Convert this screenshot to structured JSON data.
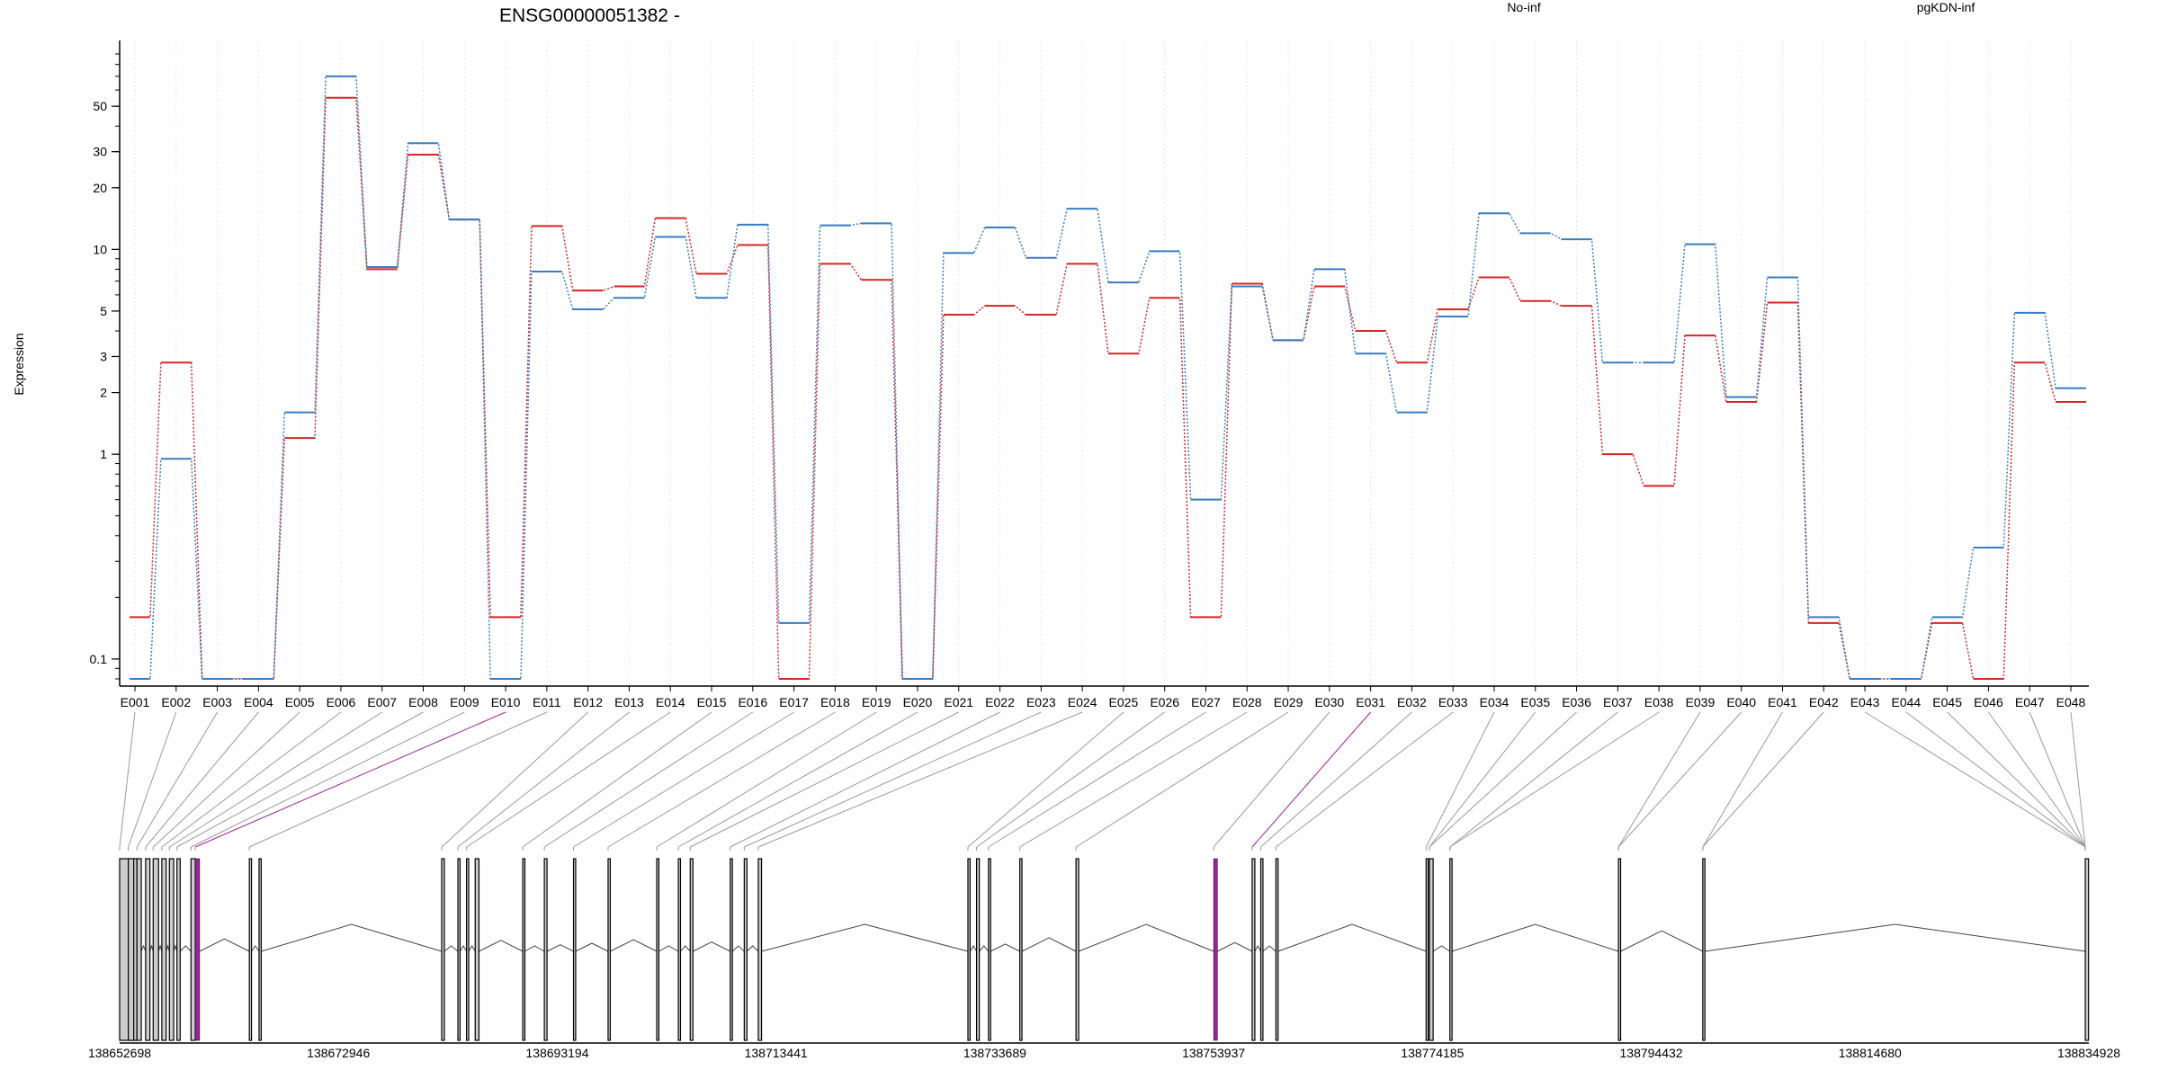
{
  "chart_data": {
    "type": "line",
    "title": "ENSG00000051382 -",
    "xlabel": "",
    "ylabel": "Expression",
    "y_scale": "log",
    "ylim": [
      0.08,
      90
    ],
    "y_ticks": [
      0.1,
      1,
      2,
      3,
      5,
      10,
      20,
      30,
      50
    ],
    "y_tick_labels": [
      "0.1",
      "1",
      "2",
      "3",
      "5",
      "10",
      "20",
      "30",
      "50"
    ],
    "grid": true,
    "legend_placement": "top",
    "categories": [
      "E001",
      "E002",
      "E003",
      "E004",
      "E005",
      "E006",
      "E007",
      "E008",
      "E009",
      "E010",
      "E011",
      "E012",
      "E013",
      "E014",
      "E015",
      "E016",
      "E017",
      "E018",
      "E019",
      "E020",
      "E021",
      "E022",
      "E023",
      "E024",
      "E025",
      "E026",
      "E027",
      "E028",
      "E029",
      "E030",
      "E031",
      "E032",
      "E033",
      "E034",
      "E035",
      "E036",
      "E037",
      "E038",
      "E039",
      "E040",
      "E041",
      "E042",
      "E043",
      "E044",
      "E045",
      "E046",
      "E047",
      "E048"
    ],
    "series": [
      {
        "name": "No-inf",
        "color": "#d62728",
        "values": [
          0.16,
          2.8,
          0.08,
          0.08,
          1.2,
          55,
          8,
          29,
          14,
          0.16,
          13,
          6.3,
          6.6,
          14.2,
          7.6,
          10.5,
          0.08,
          8.5,
          7.1,
          0.08,
          4.8,
          5.3,
          4.8,
          8.5,
          3.1,
          5.8,
          0.16,
          6.8,
          3.6,
          6.6,
          4,
          2.8,
          5.1,
          7.3,
          5.6,
          5.3,
          1,
          0.7,
          3.8,
          1.8,
          5.5,
          0.15,
          0.08,
          0.08,
          0.15,
          0.08,
          2.8,
          1.8
        ]
      },
      {
        "name": "pgKDN-inf",
        "color": "#3a7dc0",
        "values": [
          0.08,
          0.95,
          0.08,
          0.08,
          1.6,
          70,
          8.2,
          33,
          14,
          0.08,
          7.8,
          5.1,
          5.8,
          11.5,
          5.8,
          13.2,
          0.15,
          13.1,
          13.4,
          0.08,
          9.6,
          12.8,
          9.1,
          15.8,
          6.9,
          9.8,
          0.6,
          6.6,
          3.6,
          8,
          3.1,
          1.6,
          4.7,
          15,
          12,
          11.2,
          2.8,
          2.8,
          10.6,
          1.9,
          7.3,
          0.16,
          0.08,
          0.08,
          0.16,
          0.35,
          4.9,
          2.1
        ]
      }
    ],
    "gene_model": {
      "coordinate_labels": [
        "138652698",
        "138672946",
        "138693194",
        "138713441",
        "138733689",
        "138753937",
        "138774185",
        "138794432",
        "138814680",
        "138834928"
      ],
      "coordinate_values": [
        138652698,
        138672946,
        138693194,
        138713441,
        138733689,
        138753937,
        138774185,
        138794432,
        138814680,
        138834928
      ],
      "highlight_color": "#a020a0",
      "exon_color": "#cccccc",
      "highlighted_exons": [
        "E010",
        "E031"
      ],
      "exon_starts": [
        138652698,
        138653500,
        138654300,
        138655100,
        138655800,
        138656600,
        138657300,
        138658000,
        138659300,
        138659700,
        138664700,
        138665600,
        138682500,
        138684000,
        138684800,
        138685600,
        138690000,
        138692000,
        138694700,
        138697900,
        138702400,
        138704400,
        138705500,
        138709200,
        138710500,
        138711800,
        138731200,
        138732000,
        138733100,
        138736000,
        138741200,
        138753937,
        138757500,
        138758300,
        138759700,
        138773600,
        138773900,
        138775800,
        138791400,
        138799200,
        138834600
      ],
      "exon_widths": [
        1600,
        500,
        400,
        400,
        500,
        400,
        400,
        300,
        400,
        400,
        200,
        200,
        250,
        200,
        200,
        350,
        200,
        250,
        200,
        200,
        200,
        200,
        250,
        200,
        250,
        300,
        200,
        250,
        200,
        200,
        250,
        350,
        250,
        200,
        200,
        200,
        350,
        200,
        200,
        200,
        300
      ]
    }
  }
}
